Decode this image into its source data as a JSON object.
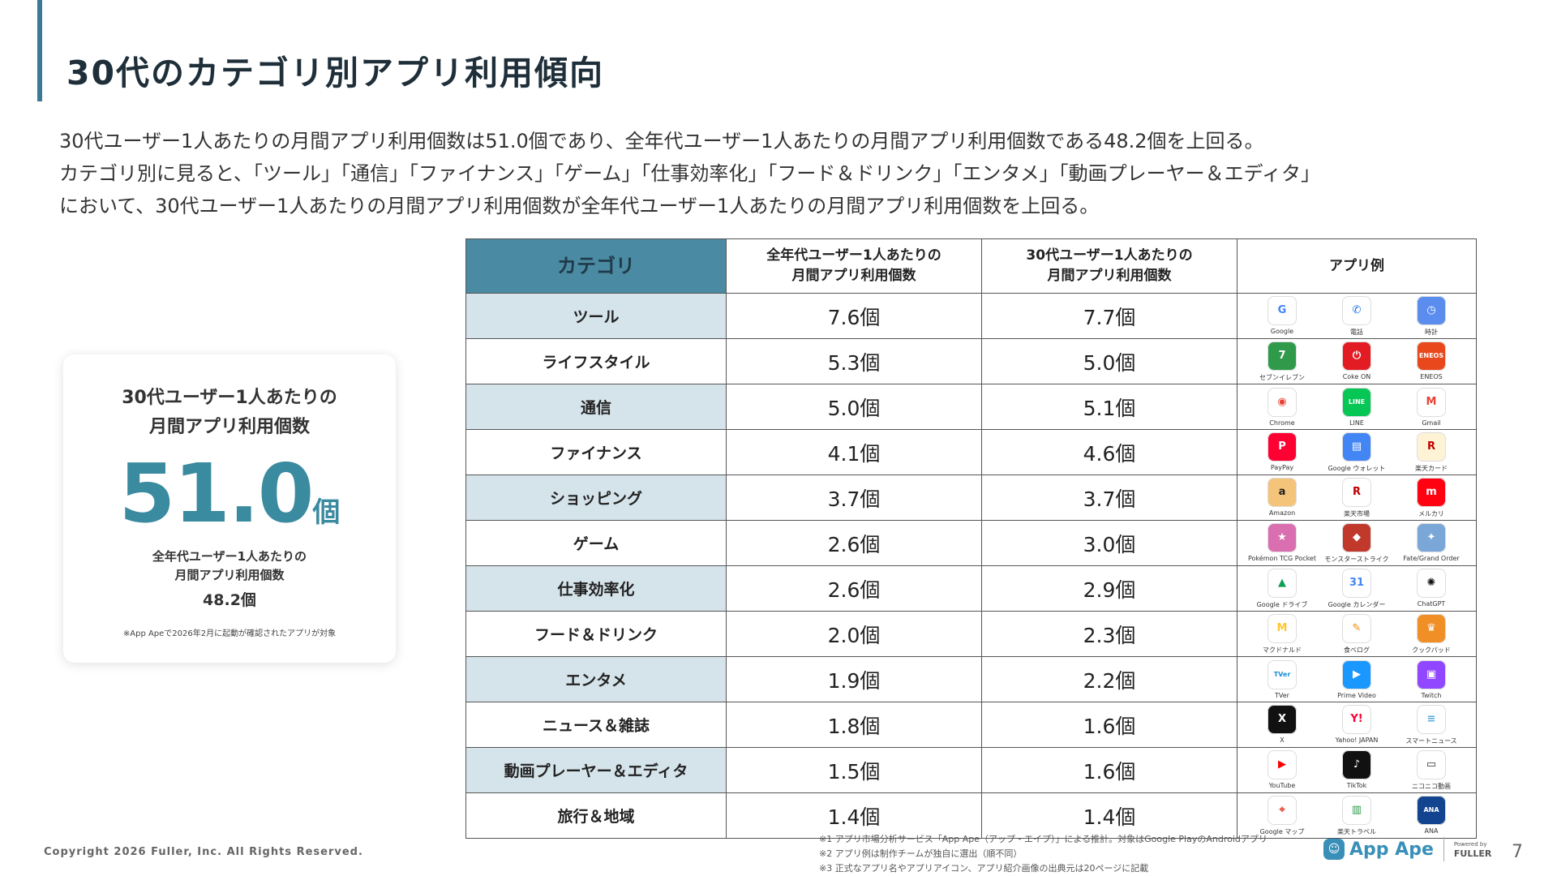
{
  "title": "30代のカテゴリ別アプリ利用傾向",
  "description": [
    "30代ユーザー1人あたりの月間アプリ利用個数は51.0個であり、全年代ユーザー1人あたりの月間アプリ利用個数である48.2個を上回る。",
    "カテゴリ別に見ると、「ツール」「通信」「ファイナンス」「ゲーム」「仕事効率化」「フード＆ドリンク」「エンタメ」「動画プレーヤー＆エディタ」",
    "において、30代ユーザー1人あたりの月間アプリ利用個数が全年代ユーザー1人あたりの月間アプリ利用個数を上回る。"
  ],
  "card": {
    "label_line1": "30代ユーザー1人あたりの",
    "label_line2": "月間アプリ利用個数",
    "big_value": "51.0",
    "big_unit": "個",
    "sub_line1": "全年代ユーザー1人あたりの",
    "sub_line2": "月間アプリ利用個数",
    "sub_value": "48.2個",
    "note": "※App Apeで2026年2月に起動が確認されたアプリが対象"
  },
  "table": {
    "headers": {
      "category": "カテゴリ",
      "all_line1": "全年代ユーザー1人あたりの",
      "all_line2": "月間アプリ利用個数",
      "age30_line1": "30代ユーザー1人あたりの",
      "age30_line2": "月間アプリ利用個数",
      "apps": "アプリ例"
    },
    "rows": [
      {
        "category": "ツール",
        "all": "7.6個",
        "age30": "7.7個",
        "apps": [
          {
            "name": "Google",
            "glyph": "G",
            "color": "#4285f4",
            "bg": "#ffffff"
          },
          {
            "name": "電話",
            "glyph": "✆",
            "color": "#1a73e8",
            "bg": "#ffffff"
          },
          {
            "name": "時計",
            "glyph": "◷",
            "color": "#ffffff",
            "bg": "#5b8def"
          }
        ]
      },
      {
        "category": "ライフスタイル",
        "all": "5.3個",
        "age30": "5.0個",
        "apps": [
          {
            "name": "セブンイレブン",
            "glyph": "7",
            "color": "#ffffff",
            "bg": "#2e9a4a"
          },
          {
            "name": "Coke ON",
            "glyph": "⏻",
            "color": "#ffffff",
            "bg": "#e31b23"
          },
          {
            "name": "ENEOS",
            "glyph": "ENEOS",
            "color": "#ffffff",
            "bg": "#e8481c"
          }
        ]
      },
      {
        "category": "通信",
        "all": "5.0個",
        "age30": "5.1個",
        "apps": [
          {
            "name": "Chrome",
            "glyph": "◉",
            "color": "#ea4335",
            "bg": "#ffffff"
          },
          {
            "name": "LINE",
            "glyph": "LINE",
            "color": "#ffffff",
            "bg": "#06c755"
          },
          {
            "name": "Gmail",
            "glyph": "M",
            "color": "#ea4335",
            "bg": "#ffffff"
          }
        ]
      },
      {
        "category": "ファイナンス",
        "all": "4.1個",
        "age30": "4.6個",
        "apps": [
          {
            "name": "PayPay",
            "glyph": "P",
            "color": "#ffffff",
            "bg": "#ff0033"
          },
          {
            "name": "Google ウォレット",
            "glyph": "▤",
            "color": "#ffffff",
            "bg": "#4285f4"
          },
          {
            "name": "楽天カード",
            "glyph": "R",
            "color": "#bf0000",
            "bg": "#fff3d6"
          }
        ]
      },
      {
        "category": "ショッピング",
        "all": "3.7個",
        "age30": "3.7個",
        "apps": [
          {
            "name": "Amazon",
            "glyph": "a",
            "color": "#222222",
            "bg": "#f3c47a"
          },
          {
            "name": "楽天市場",
            "glyph": "R",
            "color": "#bf0000",
            "bg": "#ffffff"
          },
          {
            "name": "メルカリ",
            "glyph": "m",
            "color": "#ffffff",
            "bg": "#ff0211"
          }
        ]
      },
      {
        "category": "ゲーム",
        "all": "2.6個",
        "age30": "3.0個",
        "apps": [
          {
            "name": "Pokémon TCG Pocket",
            "glyph": "★",
            "color": "#ffffff",
            "bg": "#d96fb0"
          },
          {
            "name": "モンスターストライク",
            "glyph": "◆",
            "color": "#ffffff",
            "bg": "#c0392b"
          },
          {
            "name": "Fate/Grand Order",
            "glyph": "✦",
            "color": "#ffffff",
            "bg": "#7aa7d8"
          }
        ]
      },
      {
        "category": "仕事効率化",
        "all": "2.6個",
        "age30": "2.9個",
        "apps": [
          {
            "name": "Google ドライブ",
            "glyph": "▲",
            "color": "#0f9d58",
            "bg": "#ffffff"
          },
          {
            "name": "Google カレンダー",
            "glyph": "31",
            "color": "#4285f4",
            "bg": "#ffffff"
          },
          {
            "name": "ChatGPT",
            "glyph": "✺",
            "color": "#111111",
            "bg": "#ffffff"
          }
        ]
      },
      {
        "category": "フード＆ドリンク",
        "all": "2.0個",
        "age30": "2.3個",
        "apps": [
          {
            "name": "マクドナルド",
            "glyph": "M",
            "color": "#ffc72c",
            "bg": "#ffffff"
          },
          {
            "name": "食べログ",
            "glyph": "✎",
            "color": "#f08a00",
            "bg": "#ffffff"
          },
          {
            "name": "クックパッド",
            "glyph": "♛",
            "color": "#ffffff",
            "bg": "#f18f27"
          }
        ]
      },
      {
        "category": "エンタメ",
        "all": "1.9個",
        "age30": "2.2個",
        "apps": [
          {
            "name": "TVer",
            "glyph": "TVer",
            "color": "#1a8fd6",
            "bg": "#ffffff"
          },
          {
            "name": "Prime Video",
            "glyph": "▶",
            "color": "#ffffff",
            "bg": "#1a98ff"
          },
          {
            "name": "Twitch",
            "glyph": "▣",
            "color": "#ffffff",
            "bg": "#9146ff"
          }
        ]
      },
      {
        "category": "ニュース＆雑誌",
        "all": "1.8個",
        "age30": "1.6個",
        "apps": [
          {
            "name": "X",
            "glyph": "X",
            "color": "#ffffff",
            "bg": "#111111"
          },
          {
            "name": "Yahoo! JAPAN",
            "glyph": "Y!",
            "color": "#ff0033",
            "bg": "#ffffff"
          },
          {
            "name": "スマートニュース",
            "glyph": "≡",
            "color": "#5aa7e0",
            "bg": "#ffffff"
          }
        ]
      },
      {
        "category": "動画プレーヤー＆エディタ",
        "all": "1.5個",
        "age30": "1.6個",
        "apps": [
          {
            "name": "YouTube",
            "glyph": "▶",
            "color": "#ff0000",
            "bg": "#ffffff"
          },
          {
            "name": "TikTok",
            "glyph": "♪",
            "color": "#ffffff",
            "bg": "#111111"
          },
          {
            "name": "ニコニコ動画",
            "glyph": "▭",
            "color": "#333333",
            "bg": "#ffffff"
          }
        ]
      },
      {
        "category": "旅行＆地域",
        "all": "1.4個",
        "age30": "1.4個",
        "apps": [
          {
            "name": "Google マップ",
            "glyph": "⌖",
            "color": "#ea4335",
            "bg": "#ffffff"
          },
          {
            "name": "楽天トラベル",
            "glyph": "▥",
            "color": "#2e9a4a",
            "bg": "#ffffff"
          },
          {
            "name": "ANA",
            "glyph": "ANA",
            "color": "#ffffff",
            "bg": "#13448f"
          }
        ]
      }
    ]
  },
  "copyright": "Copyright 2026 Fuller, Inc. All Rights Reserved.",
  "notes": [
    "※1 アプリ市場分析サービス「App Ape（アップ・エイプ）」による推計。対象はGoogle PlayのAndroidアプリ",
    "※2 アプリ例は制作チームが独自に選出（順不同）",
    "※3 正式なアプリ名やアプリアイコン、アプリ紹介画像の出典元は20ページに記載"
  ],
  "brand": {
    "app_ape": "App Ape",
    "powered_by": "Powered by",
    "fuller": "FULLER"
  },
  "page_number": "7"
}
